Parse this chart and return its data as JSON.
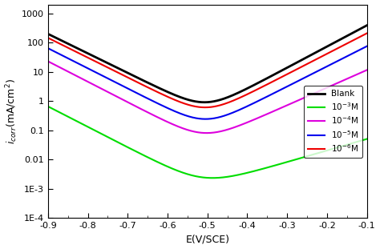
{
  "xlabel": "E(V/SCE)",
  "ylabel": "$i_{corr}$(mA/cm$^2$)",
  "xlim": [
    -0.9,
    -0.1
  ],
  "ylim_log": [
    0.0001,
    2000
  ],
  "yticks": [
    0.0001,
    0.001,
    0.01,
    0.1,
    1,
    10,
    100,
    1000
  ],
  "ytick_labels": [
    "1E-4",
    "1E-3",
    "0.01",
    "0.1",
    "1",
    "10",
    "100",
    "1000"
  ],
  "xticks": [
    -0.9,
    -0.8,
    -0.7,
    -0.6,
    -0.5,
    -0.4,
    -0.3,
    -0.2,
    -0.1
  ],
  "colors": {
    "blank": "#000000",
    "1e-3": "#00dd00",
    "1e-4": "#dd00dd",
    "1e-5": "#0000ee",
    "1e-6": "#ee0000"
  },
  "curves": {
    "blank": {
      "E_corr": -0.505,
      "i_corr": 0.45,
      "beta_c": 0.065,
      "beta_a": 0.06,
      "lw": 2.0
    },
    "1e-3": {
      "E_corr": -0.51,
      "i_corr": 0.0012,
      "beta_c": 0.062,
      "beta_a": 0.11,
      "lw": 1.5
    },
    "1e-4": {
      "E_corr": -0.507,
      "i_corr": 0.04,
      "beta_c": 0.062,
      "beta_a": 0.072,
      "lw": 1.5
    },
    "1e-5": {
      "E_corr": -0.505,
      "i_corr": 0.12,
      "beta_c": 0.063,
      "beta_a": 0.063,
      "lw": 1.5
    },
    "1e-6": {
      "E_corr": -0.505,
      "i_corr": 0.3,
      "beta_c": 0.064,
      "beta_a": 0.062,
      "lw": 1.5
    }
  },
  "linewidth": 1.5,
  "legend_loc": "center right"
}
